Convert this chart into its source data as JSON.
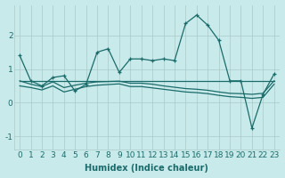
{
  "xlabel": "Humidex (Indice chaleur)",
  "background_color": "#c8eaea",
  "grid_color": "#b0c8c8",
  "line_color": "#1a6b6b",
  "xlim": [
    -0.5,
    23.5
  ],
  "ylim": [
    -1.4,
    2.9
  ],
  "yticks": [
    -1,
    0,
    1,
    2
  ],
  "xticks": [
    0,
    1,
    2,
    3,
    4,
    5,
    6,
    7,
    8,
    9,
    10,
    11,
    12,
    13,
    14,
    15,
    16,
    17,
    18,
    19,
    20,
    21,
    22,
    23
  ],
  "series": {
    "line1": {
      "x": [
        0,
        1,
        2,
        3,
        4,
        5,
        6,
        7,
        8,
        9,
        10,
        11,
        12,
        13,
        14,
        15,
        16,
        17,
        18,
        19,
        20,
        21,
        22,
        23
      ],
      "y": [
        1.4,
        0.65,
        0.5,
        0.75,
        0.8,
        0.35,
        0.55,
        1.5,
        1.6,
        0.9,
        1.3,
        1.3,
        1.25,
        1.3,
        1.25,
        2.35,
        2.6,
        2.3,
        1.85,
        0.65,
        0.65,
        -0.75,
        0.25,
        0.85
      ]
    },
    "line2": {
      "x": [
        0,
        1,
        2,
        3,
        4,
        5,
        6,
        7,
        8,
        9,
        10,
        11,
        12,
        13,
        14,
        15,
        16,
        17,
        18,
        19,
        20,
        21,
        22,
        23
      ],
      "y": [
        0.65,
        0.65,
        0.65,
        0.65,
        0.65,
        0.65,
        0.65,
        0.65,
        0.65,
        0.65,
        0.65,
        0.65,
        0.65,
        0.65,
        0.65,
        0.65,
        0.65,
        0.65,
        0.65,
        0.65,
        0.65,
        0.65,
        0.65,
        0.65
      ]
    },
    "line3": {
      "x": [
        0,
        1,
        2,
        3,
        4,
        5,
        6,
        7,
        8,
        9,
        10,
        11,
        12,
        13,
        14,
        15,
        16,
        17,
        18,
        19,
        20,
        21,
        22,
        23
      ],
      "y": [
        0.65,
        0.55,
        0.48,
        0.62,
        0.45,
        0.52,
        0.58,
        0.62,
        0.63,
        0.64,
        0.58,
        0.58,
        0.55,
        0.5,
        0.46,
        0.42,
        0.4,
        0.37,
        0.32,
        0.28,
        0.27,
        0.25,
        0.28,
        0.65
      ]
    },
    "line4": {
      "x": [
        0,
        1,
        2,
        3,
        4,
        5,
        6,
        7,
        8,
        9,
        10,
        11,
        12,
        13,
        14,
        15,
        16,
        17,
        18,
        19,
        20,
        21,
        22,
        23
      ],
      "y": [
        0.5,
        0.45,
        0.38,
        0.5,
        0.32,
        0.4,
        0.48,
        0.52,
        0.54,
        0.56,
        0.48,
        0.48,
        0.44,
        0.4,
        0.36,
        0.32,
        0.3,
        0.27,
        0.22,
        0.18,
        0.16,
        0.13,
        0.16,
        0.55
      ]
    }
  },
  "fontsize_xlabel": 7,
  "tick_fontsize": 6.5
}
